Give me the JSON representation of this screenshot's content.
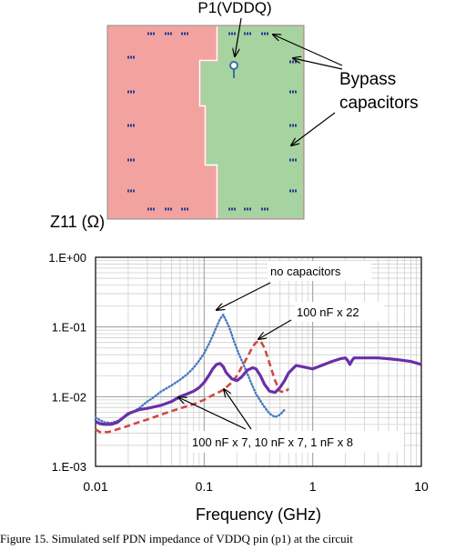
{
  "figure": {
    "diagram": {
      "probe_label": "P1(VDDQ)",
      "bypass_label_line1": "Bypass",
      "bypass_label_line2": "capacitors",
      "colors": {
        "left_plane": "#f2a3a0",
        "right_plane": "#a6d3a0",
        "probe": "#3a6fa8"
      }
    },
    "caption": "Figure 15. Simulated self PDN impedance of VDDQ pin (p1) at the circuit"
  },
  "chart_data": {
    "type": "line",
    "ylabel": "Z11 (Ω)",
    "xlabel": "Frequency (GHz)",
    "xscale": "log",
    "yscale": "log",
    "xlim": [
      0.01,
      10
    ],
    "ylim": [
      0.001,
      1
    ],
    "xticks": [
      "0.01",
      "0.1",
      "1",
      "10"
    ],
    "yticks": [
      "1.E-03",
      "1.E-02",
      "1.E-01",
      "1.E+00"
    ],
    "grid": true,
    "series": [
      {
        "name": "no capacitors",
        "color": "#4a78bf",
        "style": "dotted",
        "x": [
          0.01,
          0.011,
          0.012,
          0.014,
          0.016,
          0.02,
          0.025,
          0.03,
          0.035,
          0.04,
          0.05,
          0.06,
          0.07,
          0.08,
          0.09,
          0.1,
          0.11,
          0.12,
          0.13,
          0.14,
          0.15,
          0.17,
          0.19,
          0.21,
          0.24,
          0.27,
          0.3,
          0.35,
          0.4,
          0.45,
          0.5,
          0.55
        ],
        "y": [
          0.005,
          0.0046,
          0.0043,
          0.0042,
          0.0045,
          0.0055,
          0.0068,
          0.0085,
          0.01,
          0.0118,
          0.0145,
          0.0175,
          0.021,
          0.026,
          0.033,
          0.042,
          0.056,
          0.075,
          0.1,
          0.13,
          0.15,
          0.1,
          0.06,
          0.04,
          0.025,
          0.016,
          0.011,
          0.0075,
          0.0057,
          0.0051,
          0.0055,
          0.0065
        ]
      },
      {
        "name": "100 nF x 22",
        "color": "#d04a42",
        "style": "dashed",
        "x": [
          0.01,
          0.011,
          0.013,
          0.015,
          0.02,
          0.025,
          0.03,
          0.04,
          0.05,
          0.06,
          0.08,
          0.1,
          0.12,
          0.15,
          0.18,
          0.2,
          0.22,
          0.25,
          0.28,
          0.3,
          0.33,
          0.36,
          0.4,
          0.45,
          0.5,
          0.55,
          0.6
        ],
        "y": [
          0.0034,
          0.0031,
          0.0031,
          0.0033,
          0.0038,
          0.0043,
          0.0047,
          0.0055,
          0.0062,
          0.0068,
          0.0078,
          0.009,
          0.0105,
          0.0125,
          0.016,
          0.02,
          0.026,
          0.037,
          0.052,
          0.06,
          0.063,
          0.05,
          0.03,
          0.017,
          0.012,
          0.0115,
          0.013
        ]
      },
      {
        "name": "100 nF x 7, 10 nF x 7, 1 nF x 8",
        "color": "#6a2fa8",
        "style": "solid",
        "x": [
          0.01,
          0.011,
          0.012,
          0.014,
          0.016,
          0.018,
          0.02,
          0.025,
          0.03,
          0.04,
          0.05,
          0.06,
          0.07,
          0.08,
          0.09,
          0.1,
          0.11,
          0.12,
          0.13,
          0.14,
          0.15,
          0.16,
          0.18,
          0.2,
          0.22,
          0.25,
          0.28,
          0.3,
          0.33,
          0.36,
          0.4,
          0.45,
          0.5,
          0.55,
          0.6,
          0.7,
          0.8,
          1.0,
          1.2,
          1.5,
          1.8,
          2.0,
          2.1,
          2.2,
          2.3,
          2.4,
          2.5,
          3.0,
          4.0,
          5.0,
          6.0,
          8.0,
          10.0
        ],
        "y": [
          0.0044,
          0.0041,
          0.004,
          0.004,
          0.0043,
          0.005,
          0.0057,
          0.0065,
          0.0068,
          0.0075,
          0.0085,
          0.01,
          0.011,
          0.012,
          0.0135,
          0.016,
          0.02,
          0.025,
          0.029,
          0.03,
          0.027,
          0.022,
          0.018,
          0.017,
          0.019,
          0.024,
          0.026,
          0.025,
          0.02,
          0.015,
          0.012,
          0.0115,
          0.0135,
          0.017,
          0.022,
          0.028,
          0.027,
          0.025,
          0.028,
          0.032,
          0.035,
          0.036,
          0.033,
          0.029,
          0.033,
          0.036,
          0.036,
          0.036,
          0.036,
          0.035,
          0.034,
          0.032,
          0.029
        ]
      }
    ],
    "annotations": [
      "no capacitors",
      "100 nF x 22",
      "100 nF x 7, 10 nF x 7, 1 nF x 8"
    ]
  }
}
